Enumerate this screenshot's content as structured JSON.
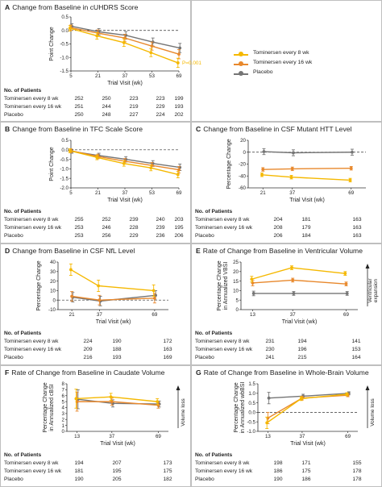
{
  "colors": {
    "tom8": "#f5b800",
    "tom16": "#e8882c",
    "placebo": "#757575"
  },
  "legend": [
    "Tominersen every 8 wk",
    "Tominersen every 16 wk",
    "Placebo"
  ],
  "patients_header": "No. of Patients",
  "chart_data": [
    {
      "panel": "A",
      "title": "Change from Baseline in cUHDRS Score",
      "type": "line",
      "xlabel": "Trial Visit (wk)",
      "ylabel": "Point Change",
      "x": [
        5,
        21,
        37,
        53,
        69
      ],
      "xticks": [
        "5",
        "21",
        "37",
        "53",
        "69"
      ],
      "ylim": [
        -1.5,
        0.5
      ],
      "yticks": [
        "0.5",
        "0.0",
        "-0.5",
        "-1.0",
        "-1.5"
      ],
      "ytickvals": [
        0.5,
        0.0,
        -0.5,
        -1.0,
        -1.5
      ],
      "annotation": "P=0.001",
      "series": [
        {
          "name": "Tominersen every 8 wk",
          "values": [
            0.08,
            -0.2,
            -0.45,
            -0.82,
            -1.2
          ],
          "err": [
            0.1,
            0.12,
            0.14,
            0.15,
            0.17
          ]
        },
        {
          "name": "Tominersen every 16 wk",
          "values": [
            0.1,
            -0.1,
            -0.28,
            -0.58,
            -0.88
          ],
          "err": [
            0.1,
            0.12,
            0.14,
            0.15,
            0.17
          ]
        },
        {
          "name": "Placebo",
          "values": [
            0.15,
            -0.05,
            -0.18,
            -0.43,
            -0.65
          ],
          "err": [
            0.1,
            0.12,
            0.14,
            0.15,
            0.17
          ]
        }
      ],
      "patients": [
        [
          "252",
          "250",
          "223",
          "223",
          "199"
        ],
        [
          "251",
          "244",
          "219",
          "229",
          "193"
        ],
        [
          "250",
          "248",
          "227",
          "224",
          "202"
        ]
      ]
    },
    {
      "panel": "B",
      "title": "Change from Baseline in TFC Scale Score",
      "type": "line",
      "xlabel": "Trial Visit (wk)",
      "ylabel": "Point Change",
      "x": [
        5,
        21,
        37,
        53,
        69
      ],
      "xticks": [
        "5",
        "21",
        "37",
        "53",
        "69"
      ],
      "ylim": [
        -2.0,
        0.5
      ],
      "yticks": [
        "0.5",
        "0.0",
        "-0.5",
        "-1.0",
        "-1.5",
        "-2.0"
      ],
      "ytickvals": [
        0.5,
        0.0,
        -0.5,
        -1.0,
        -1.5,
        -2.0
      ],
      "series": [
        {
          "name": "Tominersen every 8 wk",
          "values": [
            -0.05,
            -0.4,
            -0.72,
            -0.95,
            -1.3
          ],
          "err": [
            0.1,
            0.12,
            0.14,
            0.15,
            0.17
          ]
        },
        {
          "name": "Tominersen every 16 wk",
          "values": [
            -0.05,
            -0.35,
            -0.6,
            -0.82,
            -1.05
          ],
          "err": [
            0.1,
            0.12,
            0.14,
            0.15,
            0.17
          ]
        },
        {
          "name": "Placebo",
          "values": [
            -0.08,
            -0.3,
            -0.5,
            -0.72,
            -0.92
          ],
          "err": [
            0.1,
            0.12,
            0.14,
            0.15,
            0.17
          ]
        }
      ],
      "patients": [
        [
          "255",
          "252",
          "239",
          "240",
          "203"
        ],
        [
          "253",
          "246",
          "228",
          "239",
          "195"
        ],
        [
          "253",
          "256",
          "229",
          "236",
          "206"
        ]
      ]
    },
    {
      "panel": "C",
      "title": "Change from Baseline in CSF Mutant HTT Level",
      "type": "line",
      "xlabel": "Trial Visit (wk)",
      "ylabel": "Percentage Change",
      "x": [
        21,
        37,
        69
      ],
      "xticks": [
        "21",
        "37",
        "69"
      ],
      "ylim": [
        -60,
        20
      ],
      "yticks": [
        "20",
        "0",
        "-20",
        "-40",
        "-60"
      ],
      "ytickvals": [
        20,
        0,
        -20,
        -40,
        -60
      ],
      "series": [
        {
          "name": "Tominersen every 8 wk",
          "values": [
            -38,
            -42,
            -47
          ],
          "err": [
            3,
            3,
            3
          ]
        },
        {
          "name": "Tominersen every 16 wk",
          "values": [
            -29,
            -28,
            -27
          ],
          "err": [
            3,
            3,
            3
          ]
        },
        {
          "name": "Placebo",
          "values": [
            1,
            -1,
            0
          ],
          "err": [
            5,
            5,
            5
          ]
        }
      ],
      "patients": [
        [
          "204",
          "181",
          "163"
        ],
        [
          "208",
          "179",
          "163"
        ],
        [
          "206",
          "184",
          "163"
        ]
      ]
    },
    {
      "panel": "D",
      "title": "Change from Baseline in CSF NfL Level",
      "type": "line",
      "xlabel": "Trial Visit (wk)",
      "ylabel": "Percentage Change",
      "x": [
        21,
        37,
        69
      ],
      "xticks": [
        "21",
        "37",
        "69"
      ],
      "ylim": [
        -10,
        40
      ],
      "yticks": [
        "40",
        "30",
        "20",
        "10",
        "0",
        "-10"
      ],
      "ytickvals": [
        40,
        30,
        20,
        10,
        0,
        -10
      ],
      "series": [
        {
          "name": "Tominersen every 8 wk",
          "values": [
            32,
            15,
            10
          ],
          "err": [
            6,
            6,
            6
          ]
        },
        {
          "name": "Tominersen every 16 wk",
          "values": [
            4,
            0,
            2
          ],
          "err": [
            5,
            5,
            5
          ]
        },
        {
          "name": "Placebo",
          "values": [
            3,
            -1,
            5
          ],
          "err": [
            5,
            5,
            5
          ]
        }
      ],
      "patients": [
        [
          "224",
          "190",
          "172"
        ],
        [
          "209",
          "188",
          "163"
        ],
        [
          "216",
          "193",
          "169"
        ]
      ]
    },
    {
      "panel": "E",
      "title": "Rate of Change from Baseline in Ventricular Volume",
      "type": "line",
      "xlabel": "Trial Visit (wk)",
      "ylabel": "Percentage Change in Annualized VBSI",
      "annotation": "Ventricular expansion",
      "x": [
        13,
        37,
        69
      ],
      "xticks": [
        "13",
        "37",
        "69"
      ],
      "ylim": [
        0,
        25
      ],
      "yticks": [
        "25",
        "20",
        "15",
        "10",
        "5",
        "0"
      ],
      "ytickvals": [
        25,
        20,
        15,
        10,
        5,
        0
      ],
      "series": [
        {
          "name": "Tominersen every 8 wk",
          "values": [
            16,
            22,
            19
          ],
          "err": [
            1.5,
            1,
            1
          ]
        },
        {
          "name": "Tominersen every 16 wk",
          "values": [
            14,
            15.5,
            13.5
          ],
          "err": [
            1.5,
            1,
            1
          ]
        },
        {
          "name": "Placebo",
          "values": [
            8.5,
            8.5,
            8.5
          ],
          "err": [
            1.2,
            1,
            1
          ]
        }
      ],
      "patients": [
        [
          "231",
          "194",
          "141"
        ],
        [
          "230",
          "196",
          "153"
        ],
        [
          "241",
          "215",
          "164"
        ]
      ]
    },
    {
      "panel": "F",
      "title": "Rate of Change from Baseline in Caudate Volume",
      "type": "line",
      "xlabel": "Trial Visit (wk)",
      "ylabel": "Percentage Change in Annualized cBSI",
      "annotation": "Volume loss",
      "x": [
        13,
        37,
        69
      ],
      "xticks": [
        "13",
        "37",
        "69"
      ],
      "ylim": [
        0,
        8
      ],
      "yticks": [
        "8",
        "7",
        "6",
        "5",
        "4",
        "3",
        "2",
        "1",
        "0"
      ],
      "ytickvals": [
        8,
        7,
        6,
        5,
        4,
        3,
        2,
        1,
        0
      ],
      "series": [
        {
          "name": "Tominersen every 8 wk",
          "values": [
            5.5,
            5.8,
            5.0
          ],
          "err": [
            1.6,
            0.6,
            0.5
          ]
        },
        {
          "name": "Tominersen every 16 wk",
          "values": [
            5.0,
            5.0,
            4.4
          ],
          "err": [
            1.6,
            0.6,
            0.5
          ]
        },
        {
          "name": "Placebo",
          "values": [
            5.4,
            4.7,
            4.6
          ],
          "err": [
            1.6,
            0.6,
            0.5
          ]
        }
      ],
      "patients": [
        [
          "194",
          "207",
          "173"
        ],
        [
          "181",
          "195",
          "175"
        ],
        [
          "190",
          "205",
          "182"
        ]
      ]
    },
    {
      "panel": "G",
      "title": "Rate of Change from Baseline in Whole-Brain Volume",
      "type": "line",
      "xlabel": "Trial Visit (wk)",
      "ylabel": "Percentage Change in Annualized wbBSI",
      "annotation": "Volume loss",
      "x": [
        13,
        37,
        69
      ],
      "xticks": [
        "13",
        "37",
        "69"
      ],
      "ylim": [
        -1.0,
        1.5
      ],
      "yticks": [
        "1.5",
        "1.0",
        "0.5",
        "0.0",
        "-0.5",
        "-1.0"
      ],
      "ytickvals": [
        1.5,
        1.0,
        0.5,
        0.0,
        -0.5,
        -1.0
      ],
      "series": [
        {
          "name": "Tominersen every 8 wk",
          "values": [
            -0.55,
            0.72,
            0.95
          ],
          "err": [
            0.3,
            0.1,
            0.08
          ]
        },
        {
          "name": "Tominersen every 16 wk",
          "values": [
            -0.3,
            0.75,
            0.9
          ],
          "err": [
            0.3,
            0.1,
            0.08
          ]
        },
        {
          "name": "Placebo",
          "values": [
            0.75,
            0.85,
            1.0
          ],
          "err": [
            0.3,
            0.1,
            0.08
          ]
        }
      ],
      "patients": [
        [
          "198",
          "171",
          "155"
        ],
        [
          "186",
          "175",
          "178"
        ],
        [
          "190",
          "186",
          "178"
        ]
      ]
    }
  ]
}
